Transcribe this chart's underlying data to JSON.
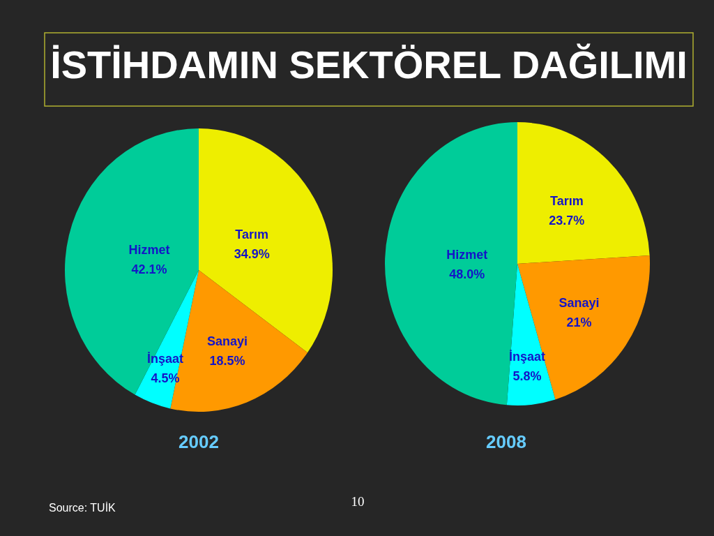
{
  "chart_data": [
    {
      "type": "other",
      "title": "İSTİHDAMIN SEKTÖREL DAĞILIMI",
      "annotations": [
        "Source: TUİK",
        "10"
      ]
    },
    {
      "type": "pie",
      "title": "2002",
      "categories": [
        "Tarım",
        "Sanayi",
        "İnşaat",
        "Hizmet"
      ],
      "values": [
        34.9,
        18.5,
        4.5,
        42.1
      ],
      "colors": [
        "#eeee00",
        "#ff9900",
        "#00ffff",
        "#00cc99"
      ],
      "value_labels": [
        "34.9%",
        "18.5%",
        "4.5%",
        "42.1%"
      ]
    },
    {
      "type": "pie",
      "title": "2008",
      "categories": [
        "Tarım",
        "Sanayi",
        "İnşaat",
        "Hizmet"
      ],
      "values": [
        23.7,
        21,
        5.8,
        48.0
      ],
      "colors": [
        "#eeee00",
        "#ff9900",
        "#00ffff",
        "#00cc99"
      ],
      "value_labels": [
        "23.7%",
        "21%",
        "5.8%",
        "48.0%"
      ]
    }
  ]
}
